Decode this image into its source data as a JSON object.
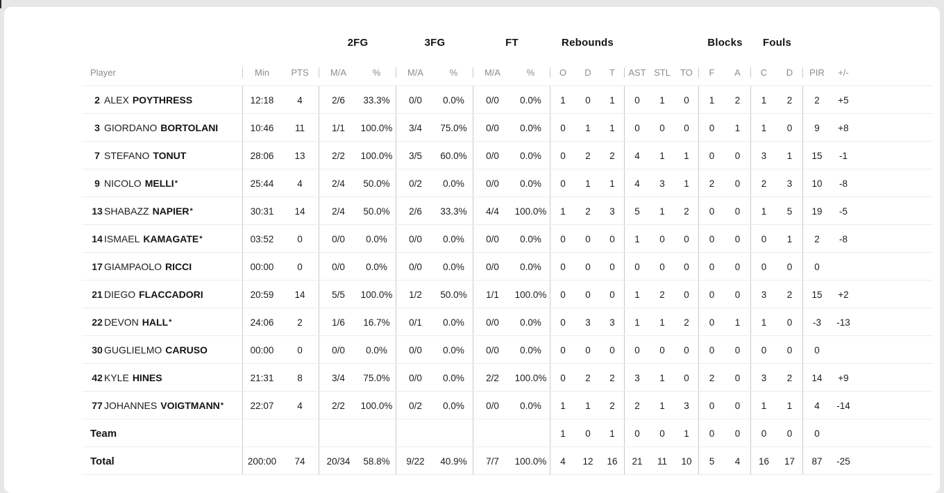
{
  "page": {
    "background_color": "#e7e7e7",
    "card_color": "#ffffff",
    "divider_color": "#c9c9c9",
    "row_line_color": "#ececec",
    "header_text_color": "#8c8c8c",
    "text_color": "#1c1c1c"
  },
  "table": {
    "groups": {
      "fg2": "2FG",
      "fg3": "3FG",
      "ft": "FT",
      "rebounds": "Rebounds",
      "blocks": "Blocks",
      "fouls": "Fouls"
    },
    "headers": {
      "player": "Player",
      "min": "Min",
      "pts": "PTS",
      "ma": "M/A",
      "pct": "%",
      "o": "O",
      "d": "D",
      "t": "T",
      "ast": "AST",
      "stl": "STL",
      "to": "TO",
      "f": "F",
      "a": "A",
      "c": "C",
      "fd": "D",
      "pir": "PIR",
      "pm": "+/-"
    },
    "rows": [
      {
        "type": "player",
        "label": "",
        "num": "2",
        "first": "ALEX",
        "last": "POYTHRESS",
        "star": "",
        "min": "12:18",
        "pts": "4",
        "fg2ma": "2/6",
        "fg2pct": "33.3%",
        "fg3ma": "0/0",
        "fg3pct": "0.0%",
        "ftma": "0/0",
        "ftpct": "0.0%",
        "ro": "1",
        "rd": "0",
        "rt": "1",
        "ast": "0",
        "stl": "1",
        "to": "0",
        "bf": "1",
        "ba": "2",
        "fc": "1",
        "fd": "2",
        "pir": "2",
        "pm": "+5"
      },
      {
        "type": "player",
        "label": "",
        "num": "3",
        "first": "GIORDANO",
        "last": "BORTOLANI",
        "star": "",
        "min": "10:46",
        "pts": "11",
        "fg2ma": "1/1",
        "fg2pct": "100.0%",
        "fg3ma": "3/4",
        "fg3pct": "75.0%",
        "ftma": "0/0",
        "ftpct": "0.0%",
        "ro": "0",
        "rd": "1",
        "rt": "1",
        "ast": "0",
        "stl": "0",
        "to": "0",
        "bf": "0",
        "ba": "1",
        "fc": "1",
        "fd": "0",
        "pir": "9",
        "pm": "+8"
      },
      {
        "type": "player",
        "label": "",
        "num": "7",
        "first": "STEFANO",
        "last": "TONUT",
        "star": "",
        "min": "28:06",
        "pts": "13",
        "fg2ma": "2/2",
        "fg2pct": "100.0%",
        "fg3ma": "3/5",
        "fg3pct": "60.0%",
        "ftma": "0/0",
        "ftpct": "0.0%",
        "ro": "0",
        "rd": "2",
        "rt": "2",
        "ast": "4",
        "stl": "1",
        "to": "1",
        "bf": "0",
        "ba": "0",
        "fc": "3",
        "fd": "1",
        "pir": "15",
        "pm": "-1"
      },
      {
        "type": "player",
        "label": "",
        "num": "9",
        "first": "NICOLO",
        "last": "MELLI",
        "star": "*",
        "min": "25:44",
        "pts": "4",
        "fg2ma": "2/4",
        "fg2pct": "50.0%",
        "fg3ma": "0/2",
        "fg3pct": "0.0%",
        "ftma": "0/0",
        "ftpct": "0.0%",
        "ro": "0",
        "rd": "1",
        "rt": "1",
        "ast": "4",
        "stl": "3",
        "to": "1",
        "bf": "2",
        "ba": "0",
        "fc": "2",
        "fd": "3",
        "pir": "10",
        "pm": "-8"
      },
      {
        "type": "player",
        "label": "",
        "num": "13",
        "first": "SHABAZZ",
        "last": "NAPIER",
        "star": "*",
        "min": "30:31",
        "pts": "14",
        "fg2ma": "2/4",
        "fg2pct": "50.0%",
        "fg3ma": "2/6",
        "fg3pct": "33.3%",
        "ftma": "4/4",
        "ftpct": "100.0%",
        "ro": "1",
        "rd": "2",
        "rt": "3",
        "ast": "5",
        "stl": "1",
        "to": "2",
        "bf": "0",
        "ba": "0",
        "fc": "1",
        "fd": "5",
        "pir": "19",
        "pm": "-5"
      },
      {
        "type": "player",
        "label": "",
        "num": "14",
        "first": "ISMAEL",
        "last": "KAMAGATE",
        "star": "*",
        "min": "03:52",
        "pts": "0",
        "fg2ma": "0/0",
        "fg2pct": "0.0%",
        "fg3ma": "0/0",
        "fg3pct": "0.0%",
        "ftma": "0/0",
        "ftpct": "0.0%",
        "ro": "0",
        "rd": "0",
        "rt": "0",
        "ast": "1",
        "stl": "0",
        "to": "0",
        "bf": "0",
        "ba": "0",
        "fc": "0",
        "fd": "1",
        "pir": "2",
        "pm": "-8"
      },
      {
        "type": "player",
        "label": "",
        "num": "17",
        "first": "GIAMPAOLO",
        "last": "RICCI",
        "star": "",
        "min": "00:00",
        "pts": "0",
        "fg2ma": "0/0",
        "fg2pct": "0.0%",
        "fg3ma": "0/0",
        "fg3pct": "0.0%",
        "ftma": "0/0",
        "ftpct": "0.0%",
        "ro": "0",
        "rd": "0",
        "rt": "0",
        "ast": "0",
        "stl": "0",
        "to": "0",
        "bf": "0",
        "ba": "0",
        "fc": "0",
        "fd": "0",
        "pir": "0",
        "pm": ""
      },
      {
        "type": "player",
        "label": "",
        "num": "21",
        "first": "DIEGO",
        "last": "FLACCADORI",
        "star": "",
        "min": "20:59",
        "pts": "14",
        "fg2ma": "5/5",
        "fg2pct": "100.0%",
        "fg3ma": "1/2",
        "fg3pct": "50.0%",
        "ftma": "1/1",
        "ftpct": "100.0%",
        "ro": "0",
        "rd": "0",
        "rt": "0",
        "ast": "1",
        "stl": "2",
        "to": "0",
        "bf": "0",
        "ba": "0",
        "fc": "3",
        "fd": "2",
        "pir": "15",
        "pm": "+2"
      },
      {
        "type": "player",
        "label": "",
        "num": "22",
        "first": "DEVON",
        "last": "HALL",
        "star": "*",
        "min": "24:06",
        "pts": "2",
        "fg2ma": "1/6",
        "fg2pct": "16.7%",
        "fg3ma": "0/1",
        "fg3pct": "0.0%",
        "ftma": "0/0",
        "ftpct": "0.0%",
        "ro": "0",
        "rd": "3",
        "rt": "3",
        "ast": "1",
        "stl": "1",
        "to": "2",
        "bf": "0",
        "ba": "1",
        "fc": "1",
        "fd": "0",
        "pir": "-3",
        "pm": "-13"
      },
      {
        "type": "player",
        "label": "",
        "num": "30",
        "first": "GUGLIELMO",
        "last": "CARUSO",
        "star": "",
        "min": "00:00",
        "pts": "0",
        "fg2ma": "0/0",
        "fg2pct": "0.0%",
        "fg3ma": "0/0",
        "fg3pct": "0.0%",
        "ftma": "0/0",
        "ftpct": "0.0%",
        "ro": "0",
        "rd": "0",
        "rt": "0",
        "ast": "0",
        "stl": "0",
        "to": "0",
        "bf": "0",
        "ba": "0",
        "fc": "0",
        "fd": "0",
        "pir": "0",
        "pm": ""
      },
      {
        "type": "player",
        "label": "",
        "num": "42",
        "first": "KYLE",
        "last": "HINES",
        "star": "",
        "min": "21:31",
        "pts": "8",
        "fg2ma": "3/4",
        "fg2pct": "75.0%",
        "fg3ma": "0/0",
        "fg3pct": "0.0%",
        "ftma": "2/2",
        "ftpct": "100.0%",
        "ro": "0",
        "rd": "2",
        "rt": "2",
        "ast": "3",
        "stl": "1",
        "to": "0",
        "bf": "2",
        "ba": "0",
        "fc": "3",
        "fd": "2",
        "pir": "14",
        "pm": "+9"
      },
      {
        "type": "player",
        "label": "",
        "num": "77",
        "first": "JOHANNES",
        "last": "VOIGTMANN",
        "star": "*",
        "min": "22:07",
        "pts": "4",
        "fg2ma": "2/2",
        "fg2pct": "100.0%",
        "fg3ma": "0/2",
        "fg3pct": "0.0%",
        "ftma": "0/0",
        "ftpct": "0.0%",
        "ro": "1",
        "rd": "1",
        "rt": "2",
        "ast": "2",
        "stl": "1",
        "to": "3",
        "bf": "0",
        "ba": "0",
        "fc": "1",
        "fd": "1",
        "pir": "4",
        "pm": "-14"
      },
      {
        "type": "summary",
        "label": "Team",
        "num": "",
        "first": "",
        "last": "",
        "star": "",
        "min": "",
        "pts": "",
        "fg2ma": "",
        "fg2pct": "",
        "fg3ma": "",
        "fg3pct": "",
        "ftma": "",
        "ftpct": "",
        "ro": "1",
        "rd": "0",
        "rt": "1",
        "ast": "0",
        "stl": "0",
        "to": "1",
        "bf": "0",
        "ba": "0",
        "fc": "0",
        "fd": "0",
        "pir": "0",
        "pm": ""
      },
      {
        "type": "summary",
        "label": "Total",
        "num": "",
        "first": "",
        "last": "",
        "star": "",
        "min": "200:00",
        "pts": "74",
        "fg2ma": "20/34",
        "fg2pct": "58.8%",
        "fg3ma": "9/22",
        "fg3pct": "40.9%",
        "ftma": "7/7",
        "ftpct": "100.0%",
        "ro": "4",
        "rd": "12",
        "rt": "16",
        "ast": "21",
        "stl": "11",
        "to": "10",
        "bf": "5",
        "ba": "4",
        "fc": "16",
        "fd": "17",
        "pir": "87",
        "pm": "-25"
      }
    ]
  }
}
